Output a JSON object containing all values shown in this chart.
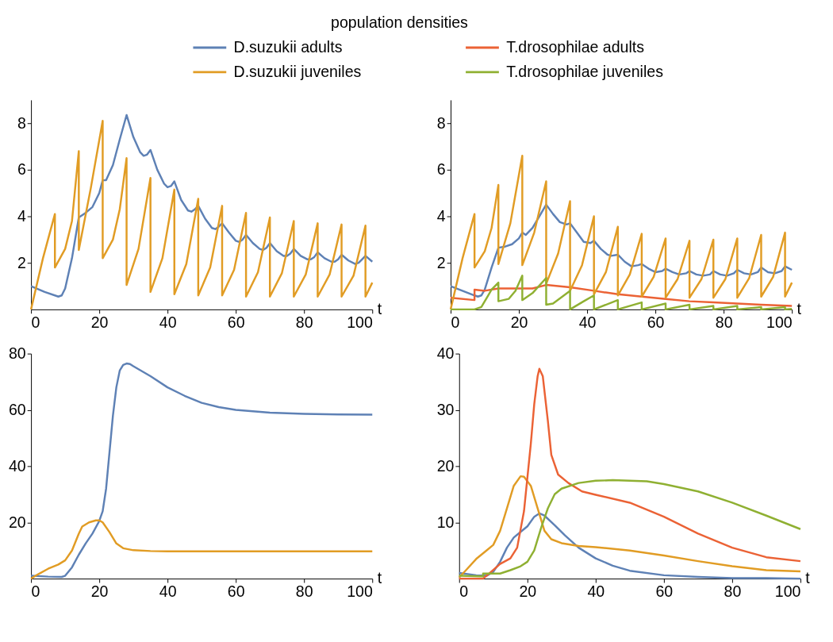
{
  "chart_data": [
    {
      "type": "line",
      "xlabel": "t",
      "xlim": [
        0,
        100
      ],
      "xticks": [
        0,
        20,
        40,
        60,
        80,
        100
      ],
      "ylim": [
        0,
        9
      ],
      "yticks": [
        2,
        4,
        6,
        8
      ],
      "grid": false,
      "legend": "top",
      "legend_title": "population densities",
      "series": [
        {
          "name": "D.suzukii adults",
          "color": "#5e81b5",
          "x": [
            0,
            4,
            8,
            9,
            10,
            12,
            14,
            16,
            18,
            20,
            21,
            22,
            24,
            26,
            28,
            30,
            32,
            33,
            34,
            35,
            37,
            39,
            40,
            41,
            42,
            44,
            46,
            47,
            48,
            49,
            51,
            53,
            54,
            55,
            56,
            58,
            60,
            61,
            62,
            63,
            65,
            67,
            68,
            69,
            70,
            72,
            74,
            75,
            76,
            77,
            79,
            81,
            82,
            83,
            84,
            86,
            88,
            89,
            90,
            91,
            93,
            95,
            96,
            97,
            98,
            100
          ],
          "values": [
            1.0,
            0.75,
            0.55,
            0.6,
            0.9,
            2.2,
            3.95,
            4.15,
            4.4,
            5.0,
            5.55,
            5.55,
            6.2,
            7.3,
            8.35,
            7.4,
            6.75,
            6.6,
            6.65,
            6.85,
            6.0,
            5.4,
            5.25,
            5.3,
            5.5,
            4.7,
            4.25,
            4.2,
            4.3,
            4.45,
            3.9,
            3.5,
            3.45,
            3.55,
            3.7,
            3.3,
            2.95,
            2.9,
            3.0,
            3.2,
            2.85,
            2.6,
            2.55,
            2.65,
            2.85,
            2.5,
            2.3,
            2.3,
            2.4,
            2.6,
            2.3,
            2.15,
            2.15,
            2.25,
            2.45,
            2.2,
            2.05,
            2.05,
            2.15,
            2.35,
            2.1,
            1.95,
            2.0,
            2.15,
            2.3,
            2.05
          ]
        },
        {
          "name": "D.suzukii juveniles",
          "color": "#e19c24",
          "x": [
            0,
            3.5,
            7,
            7,
            10,
            12,
            14,
            14,
            17.5,
            21,
            21,
            24,
            26,
            28,
            28,
            31.5,
            35,
            35,
            38.5,
            42,
            42,
            45.5,
            49,
            49,
            52.5,
            56,
            56,
            59.5,
            63,
            63,
            66.5,
            70,
            70,
            73.5,
            77,
            77,
            80.5,
            84,
            84,
            87.5,
            91,
            91,
            94.5,
            98,
            98,
            100
          ],
          "values": [
            0,
            2.2,
            4.1,
            1.8,
            2.6,
            3.8,
            6.8,
            2.55,
            5.2,
            8.1,
            2.2,
            3.0,
            4.3,
            6.5,
            1.05,
            2.6,
            5.65,
            0.75,
            2.2,
            5.15,
            0.65,
            1.95,
            4.75,
            0.6,
            1.8,
            4.45,
            0.6,
            1.7,
            4.15,
            0.55,
            1.6,
            3.95,
            0.55,
            1.55,
            3.8,
            0.55,
            1.5,
            3.7,
            0.55,
            1.5,
            3.65,
            0.55,
            1.45,
            3.6,
            0.55,
            1.15
          ]
        }
      ]
    },
    {
      "type": "line",
      "xlabel": "t",
      "xlim": [
        0,
        100
      ],
      "xticks": [
        0,
        20,
        40,
        60,
        80,
        100
      ],
      "ylim": [
        0,
        9
      ],
      "yticks": [
        2,
        4,
        6,
        8
      ],
      "grid": false,
      "legend": "top",
      "series": [
        {
          "name": "D.suzukii adults",
          "color": "#5e81b5",
          "x": [
            0,
            7,
            8,
            9,
            10,
            12,
            14,
            16,
            18,
            20,
            21,
            22,
            24,
            26,
            28,
            30,
            32,
            34,
            35,
            37,
            39,
            41,
            42,
            44,
            46,
            47,
            49,
            51,
            53,
            55,
            56,
            58,
            60,
            62,
            63,
            65,
            67,
            69,
            70,
            72,
            74,
            76,
            77,
            79,
            81,
            83,
            84,
            86,
            88,
            90,
            91,
            93,
            95,
            97,
            98,
            100
          ],
          "values": [
            1.0,
            0.6,
            0.55,
            0.6,
            0.85,
            1.8,
            2.65,
            2.7,
            2.8,
            3.05,
            3.3,
            3.2,
            3.5,
            4.0,
            4.5,
            4.1,
            3.75,
            3.65,
            3.7,
            3.3,
            2.9,
            2.85,
            2.95,
            2.6,
            2.35,
            2.3,
            2.35,
            2.05,
            1.85,
            1.9,
            1.95,
            1.75,
            1.6,
            1.65,
            1.75,
            1.6,
            1.5,
            1.55,
            1.65,
            1.5,
            1.45,
            1.5,
            1.65,
            1.5,
            1.45,
            1.55,
            1.7,
            1.55,
            1.5,
            1.6,
            1.8,
            1.6,
            1.55,
            1.65,
            1.85,
            1.7
          ]
        },
        {
          "name": "T.drosophilae adults",
          "color": "#eb6235",
          "x": [
            0,
            7,
            7,
            10,
            14,
            21,
            24,
            28,
            35,
            42,
            49,
            56,
            63,
            70,
            77,
            84,
            91,
            100
          ],
          "values": [
            0.5,
            0.4,
            0.85,
            0.8,
            0.9,
            0.9,
            0.9,
            1.05,
            0.95,
            0.8,
            0.65,
            0.55,
            0.45,
            0.35,
            0.3,
            0.25,
            0.2,
            0.15
          ]
        },
        {
          "name": "D.suzukii juveniles",
          "color": "#e19c24",
          "x": [
            0,
            3.5,
            7,
            7,
            10,
            12,
            14,
            14,
            17.5,
            21,
            21,
            24.5,
            28,
            28,
            31.5,
            35,
            35,
            38.5,
            42,
            42,
            45.5,
            49,
            49,
            52.5,
            56,
            56,
            59.5,
            63,
            63,
            66.5,
            70,
            70,
            73.5,
            77,
            77,
            80.5,
            84,
            84,
            87.5,
            91,
            91,
            94.5,
            98,
            98,
            100
          ],
          "values": [
            0,
            2.2,
            4.1,
            1.8,
            2.5,
            3.5,
            5.35,
            1.95,
            3.7,
            6.6,
            1.9,
            3.3,
            5.5,
            1.1,
            2.4,
            4.65,
            0.8,
            1.9,
            4.0,
            0.65,
            1.6,
            3.55,
            0.6,
            1.5,
            3.25,
            0.55,
            1.4,
            3.05,
            0.5,
            1.3,
            2.95,
            0.5,
            1.3,
            3.0,
            0.5,
            1.3,
            3.05,
            0.5,
            1.35,
            3.2,
            0.55,
            1.4,
            3.3,
            0.55,
            1.15
          ]
        },
        {
          "name": "T.drosophilae juveniles",
          "color": "#8fb032",
          "x": [
            0,
            7,
            9,
            11,
            12,
            14,
            14,
            17,
            19,
            21,
            21,
            24,
            28,
            28,
            30,
            35,
            35,
            39,
            42,
            42,
            49,
            49,
            56,
            56,
            63,
            63,
            70,
            70,
            77,
            77,
            84,
            84,
            91,
            91,
            98,
            98,
            100
          ],
          "values": [
            0,
            0,
            0.1,
            0.6,
            0.85,
            1.15,
            0.35,
            0.45,
            0.8,
            1.45,
            0.4,
            0.7,
            1.35,
            0.2,
            0.25,
            0.8,
            0,
            0.35,
            0.6,
            0,
            0.4,
            0,
            0.3,
            0,
            0.25,
            0,
            0.2,
            0,
            0.15,
            0,
            0.15,
            0,
            0.1,
            0,
            0.1,
            0,
            0.02
          ]
        }
      ]
    },
    {
      "type": "line",
      "xlabel": "t",
      "xlim": [
        0,
        100
      ],
      "xticks": [
        0,
        20,
        40,
        60,
        80,
        100
      ],
      "ylim": [
        0,
        80
      ],
      "yticks": [
        20,
        40,
        60,
        80
      ],
      "grid": false,
      "series": [
        {
          "name": "D.suzukii adults",
          "color": "#5e81b5",
          "x": [
            0,
            5,
            9,
            10,
            12,
            14,
            16,
            18,
            20,
            21,
            22,
            23,
            24,
            25,
            26,
            27,
            28,
            29,
            30,
            35,
            40,
            45,
            50,
            55,
            60,
            70,
            80,
            90,
            100
          ],
          "values": [
            1,
            0.7,
            0.6,
            1,
            4,
            8.5,
            12.5,
            16,
            20.5,
            24,
            32,
            45,
            58,
            68,
            74,
            76,
            76.5,
            76.3,
            75.5,
            72,
            68,
            65,
            62.5,
            61,
            60,
            59,
            58.6,
            58.4,
            58.3
          ]
        },
        {
          "name": "D.suzukii juveniles",
          "color": "#e19c24",
          "x": [
            0,
            2,
            5,
            8,
            10,
            12,
            14,
            15,
            17,
            19,
            20,
            21,
            23,
            25,
            27,
            30,
            35,
            40,
            100
          ],
          "values": [
            0,
            1.5,
            3.5,
            5,
            6.5,
            10,
            16,
            18.5,
            20,
            20.7,
            20.7,
            20,
            16.5,
            12.5,
            10.8,
            10.1,
            9.8,
            9.7,
            9.7
          ]
        }
      ]
    },
    {
      "type": "line",
      "xlabel": "t",
      "xlim": [
        0,
        100
      ],
      "xticks": [
        0,
        20,
        40,
        60,
        80,
        100
      ],
      "ylim": [
        0,
        40
      ],
      "yticks": [
        10,
        20,
        30,
        40
      ],
      "grid": false,
      "series": [
        {
          "name": "D.suzukii adults",
          "color": "#5e81b5",
          "x": [
            0,
            5,
            8,
            10,
            12,
            14,
            16,
            18,
            20,
            22,
            23.5,
            25,
            28,
            31,
            35,
            40,
            45,
            50,
            60,
            70,
            80,
            90,
            100
          ],
          "values": [
            1,
            0.6,
            0.5,
            1.2,
            3,
            5.5,
            7.3,
            8.3,
            9.3,
            11,
            11.6,
            11.2,
            9.5,
            7.7,
            5.5,
            3.6,
            2.3,
            1.4,
            0.6,
            0.3,
            0.1,
            0.1,
            0.0
          ]
        },
        {
          "name": "D.suzukii juveniles",
          "color": "#e19c24",
          "x": [
            0,
            2,
            5,
            8,
            10,
            12,
            14,
            16,
            18,
            19,
            21,
            23,
            25,
            27,
            30,
            35,
            40,
            50,
            60,
            70,
            80,
            90,
            100
          ],
          "values": [
            0.2,
            1.5,
            3.5,
            5,
            6,
            8.5,
            12.5,
            16.5,
            18.2,
            18.1,
            16.5,
            12.5,
            8.5,
            7,
            6.3,
            5.8,
            5.6,
            5,
            4.1,
            3.1,
            2.2,
            1.5,
            1.3
          ]
        },
        {
          "name": "T.drosophilae adults",
          "color": "#eb6235",
          "x": [
            0,
            7,
            9,
            12,
            15,
            17,
            19,
            21,
            22,
            23,
            23.5,
            24.5,
            26,
            27,
            29,
            32,
            36,
            40,
            50,
            60,
            70,
            80,
            90,
            100
          ],
          "values": [
            0,
            0,
            1,
            2.6,
            3.6,
            5.5,
            12,
            24,
            31,
            36,
            37.3,
            36,
            28,
            22,
            18.5,
            17,
            15.5,
            14.9,
            13.5,
            11,
            8,
            5.5,
            3.8,
            3.1
          ]
        },
        {
          "name": "T.drosophilae juveniles",
          "color": "#8fb032",
          "x": [
            0,
            7,
            7,
            12,
            15,
            18,
            20,
            22,
            24,
            26,
            28,
            30,
            35,
            40,
            45,
            55,
            60,
            70,
            80,
            90,
            100
          ],
          "values": [
            0.5,
            0.4,
            0.9,
            0.9,
            1.5,
            2.2,
            3,
            5,
            9,
            12.5,
            15,
            16,
            17,
            17.4,
            17.5,
            17.3,
            16.8,
            15.5,
            13.5,
            11.2,
            8.8
          ]
        }
      ]
    }
  ]
}
